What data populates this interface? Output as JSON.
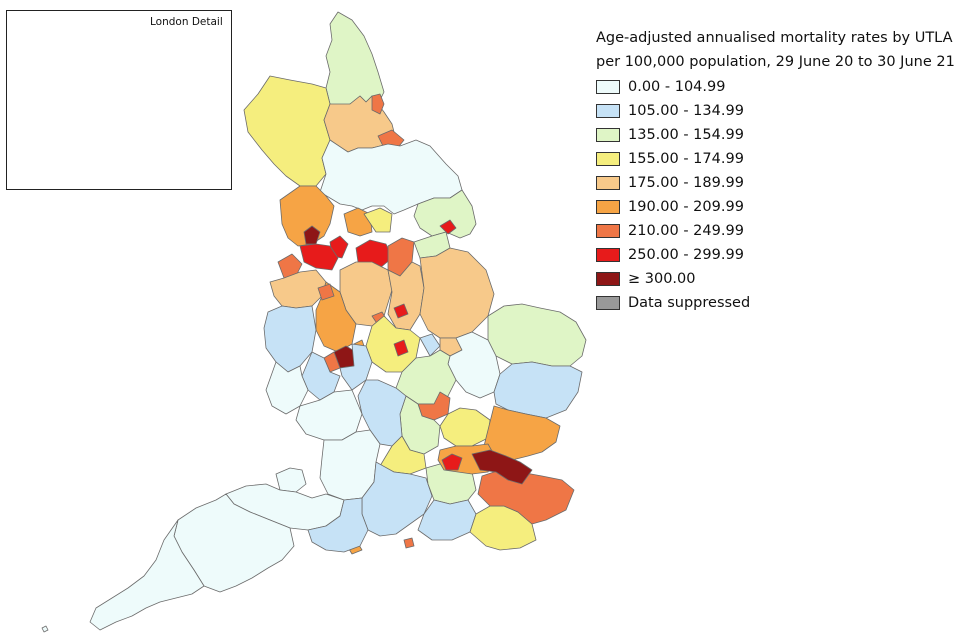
{
  "inset": {
    "title": "London Detail"
  },
  "legend": {
    "title_line1": "Age-adjusted annualised mortality rates by UTLA",
    "title_line2": "per 100,000 population, 29 June 20 to 30 June 21",
    "items": [
      {
        "label": "0.00 - 104.99",
        "color": "#eefbfb"
      },
      {
        "label": "105.00 - 134.99",
        "color": "#c6e2f6"
      },
      {
        "label": "135.00 - 154.99",
        "color": "#dff5c6"
      },
      {
        "label": "155.00 - 174.99",
        "color": "#f5ee7e"
      },
      {
        "label": "175.00 - 189.99",
        "color": "#f7c98a"
      },
      {
        "label": "190.00 - 209.99",
        "color": "#f6a445"
      },
      {
        "label": "210.00 - 249.99",
        "color": "#ef7646"
      },
      {
        "label": "250.00 - 299.99",
        "color": "#e71b1b"
      },
      {
        "label": "≥ 300.00",
        "color": "#8e1616"
      },
      {
        "label": "Data suppressed",
        "color": "#999999"
      }
    ]
  }
}
